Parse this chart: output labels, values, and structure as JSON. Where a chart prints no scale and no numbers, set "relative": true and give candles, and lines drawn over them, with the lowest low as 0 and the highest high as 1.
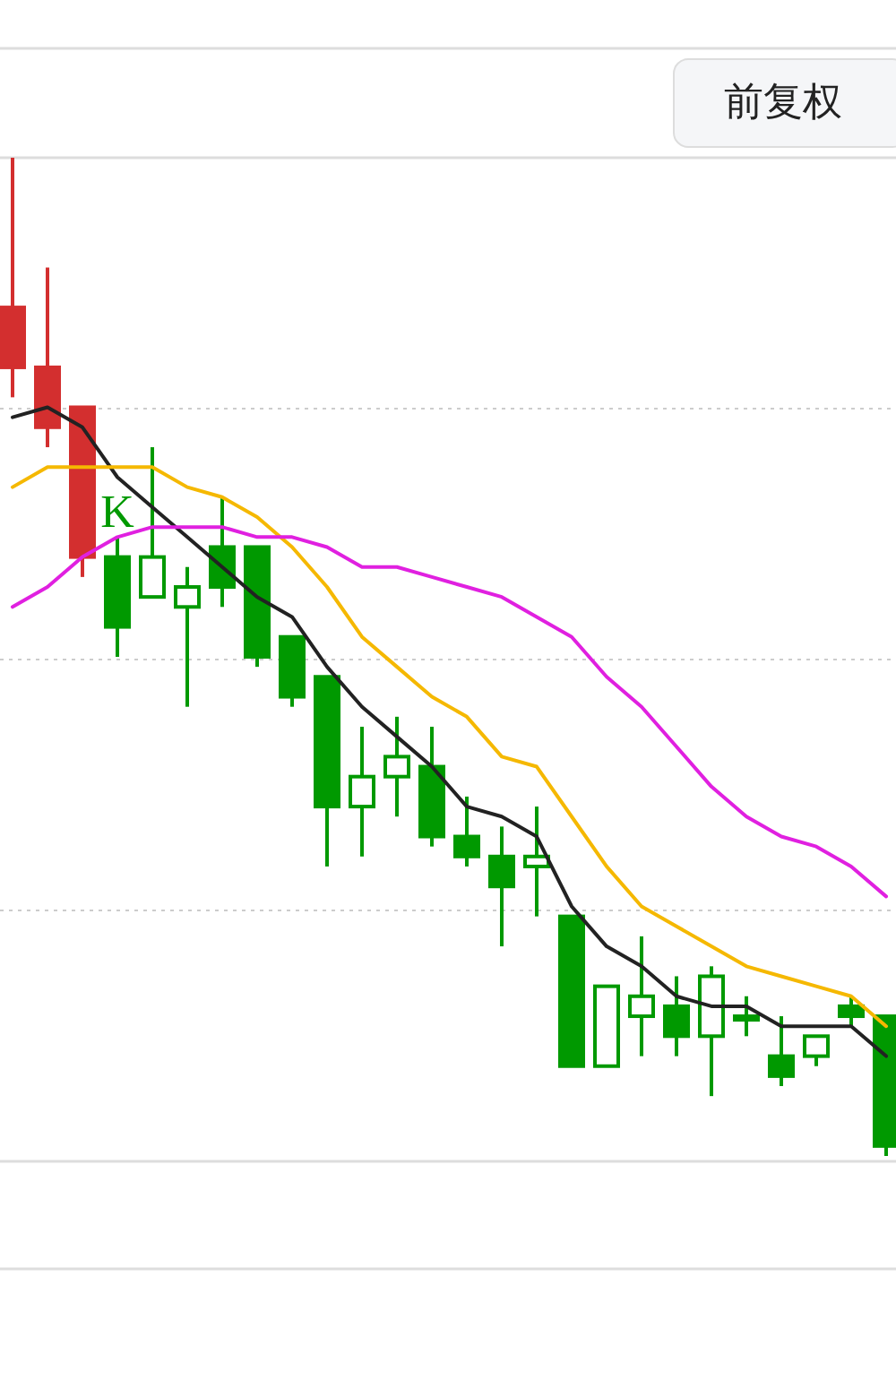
{
  "chart_data": {
    "type": "candlestick",
    "relative": true,
    "grid": true,
    "categories": [
      null,
      null,
      null,
      null,
      null,
      null,
      null,
      null,
      null,
      null,
      null,
      null,
      null,
      null,
      null,
      null,
      null,
      null,
      null,
      null,
      null,
      null,
      null,
      null,
      null,
      null
    ],
    "ohlc": [
      [
        0.85,
        1.0,
        0.76,
        0.79
      ],
      [
        0.79,
        0.89,
        0.71,
        0.73
      ],
      [
        0.75,
        0.75,
        0.58,
        0.6
      ],
      [
        0.6,
        0.62,
        0.5,
        0.53
      ],
      [
        0.56,
        0.71,
        0.56,
        0.6
      ],
      [
        0.55,
        0.59,
        0.45,
        0.57
      ],
      [
        0.61,
        0.66,
        0.55,
        0.57
      ],
      [
        0.61,
        0.61,
        0.49,
        0.5
      ],
      [
        0.52,
        0.52,
        0.45,
        0.46
      ],
      [
        0.48,
        0.48,
        0.29,
        0.35
      ],
      [
        0.35,
        0.43,
        0.3,
        0.38
      ],
      [
        0.38,
        0.44,
        0.34,
        0.4
      ],
      [
        0.39,
        0.43,
        0.31,
        0.32
      ],
      [
        0.32,
        0.36,
        0.29,
        0.3
      ],
      [
        0.3,
        0.33,
        0.21,
        0.27
      ],
      [
        0.29,
        0.35,
        0.24,
        0.3
      ],
      [
        0.24,
        0.24,
        0.09,
        0.09
      ],
      [
        0.09,
        0.17,
        0.09,
        0.17
      ],
      [
        0.14,
        0.22,
        0.1,
        0.16
      ],
      [
        0.15,
        0.18,
        0.1,
        0.12
      ],
      [
        0.12,
        0.19,
        0.06,
        0.18
      ],
      [
        0.14,
        0.16,
        0.12,
        0.14
      ],
      [
        0.1,
        0.14,
        0.07,
        0.08
      ],
      [
        0.1,
        0.12,
        0.09,
        0.12
      ],
      [
        0.15,
        0.16,
        0.13,
        0.14
      ],
      [
        0.14,
        0.14,
        0,
        0.01
      ]
    ],
    "colors": [
      "#d32f2f",
      "#d32f2f",
      "#d32f2f",
      "#009900",
      "#009900",
      "#009900",
      "#009900",
      "#009900",
      "#009900",
      "#009900",
      "#009900",
      "#009900",
      "#009900",
      "#009900",
      "#009900",
      "#009900",
      "#009900",
      "#009900",
      "#009900",
      "#009900",
      "#009900",
      "#009900",
      "#009900",
      "#009900",
      "#009900",
      "#009900"
    ],
    "series": [
      {
        "type": "line",
        "color": "#222222",
        "values": [
          0.74,
          0.75,
          0.73,
          0.68,
          0.65,
          0.62,
          0.59,
          0.56,
          0.54,
          0.49,
          0.45,
          0.42,
          0.39,
          0.35,
          0.34,
          0.32,
          0.25,
          0.21,
          0.19,
          0.16,
          0.15,
          0.15,
          0.13,
          0.13,
          0.13,
          0.1
        ]
      },
      {
        "type": "line",
        "color": "#f5b800",
        "values": [
          0.67,
          0.69,
          0.69,
          0.69,
          0.69,
          0.67,
          0.66,
          0.64,
          0.61,
          0.57,
          0.52,
          0.49,
          0.46,
          0.44,
          0.4,
          0.39,
          0.34,
          0.29,
          0.25,
          0.23,
          0.21,
          0.19,
          0.18,
          0.17,
          0.16,
          0.13
        ]
      },
      {
        "type": "line",
        "color": "#e020e0",
        "values": [
          0.55,
          0.57,
          0.6,
          0.62,
          0.63,
          0.63,
          0.63,
          0.62,
          0.62,
          0.61,
          0.59,
          0.59,
          0.58,
          0.57,
          0.56,
          0.54,
          0.52,
          0.48,
          0.45,
          0.41,
          0.37,
          0.34,
          0.32,
          0.31,
          0.29,
          0.26
        ]
      }
    ],
    "annotations": [
      "前复权",
      {
        "text": "K",
        "y": 0.63
      }
    ]
  }
}
